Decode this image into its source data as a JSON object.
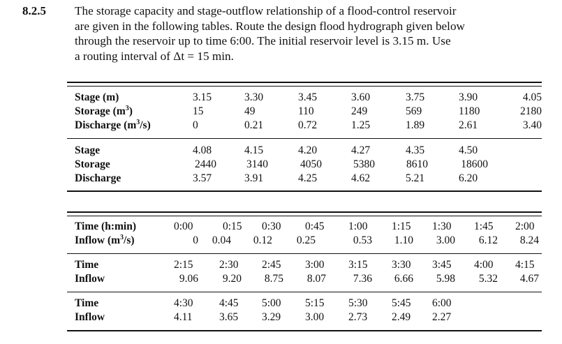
{
  "problem": {
    "number": "8.2.5",
    "lines": [
      "The storage capacity and stage-outflow relationship of a flood-control reservoir",
      "are given in the following tables. Route the design flood hydrograph given below",
      "through the reservoir up to time 6:00. The initial reservoir level is 3.15 m. Use",
      "a routing interval of Δt = 15 min."
    ]
  },
  "reservoir_table": {
    "block1": {
      "labels": [
        "Stage (m)",
        "Storage (m",
        "Discharge (m"
      ],
      "label_units": [
        "",
        ")",
        "/s)"
      ],
      "stage": [
        "3.15",
        "3.30",
        "3.45",
        "3.60",
        "3.75",
        "3.90",
        "4.05"
      ],
      "storage": [
        "15",
        "49",
        "110",
        "249",
        "569",
        "1180",
        "2180"
      ],
      "discharge": [
        "0",
        "0.21",
        "0.72",
        "1.25",
        "1.89",
        "2.61",
        "3.40"
      ]
    },
    "block2": {
      "labels": [
        "Stage",
        "Storage",
        "Discharge"
      ],
      "stage": [
        "4.08",
        "4.15",
        "4.20",
        "4.27",
        "4.35",
        "4.50"
      ],
      "storage": [
        "2440",
        "3140",
        "4050",
        "5380",
        "8610",
        "18600"
      ],
      "discharge": [
        "3.57",
        "3.91",
        "4.25",
        "4.62",
        "5.21",
        "6.20"
      ]
    }
  },
  "hydrograph_table": {
    "block1": {
      "labels": [
        "Time (h:min)",
        "Inflow (m",
        "/s)"
      ],
      "time": [
        "0:00",
        "0:15",
        "0:30",
        "0:45",
        "1:00",
        "1:15",
        "1:30",
        "1:45",
        "2:00"
      ],
      "inflow": [
        "0",
        "0.04",
        "0.12",
        "0.25",
        "0.53",
        "1.10",
        "3.00",
        "6.12",
        "8.24"
      ]
    },
    "block2": {
      "labels": [
        "Time",
        "Inflow"
      ],
      "time": [
        "2:15",
        "2:30",
        "2:45",
        "3:00",
        "3:15",
        "3:30",
        "3:45",
        "4:00",
        "4:15"
      ],
      "inflow": [
        "9.06",
        "9.20",
        "8.75",
        "8.07",
        "7.36",
        "6.66",
        "5.98",
        "5.32",
        "4.67"
      ]
    },
    "block3": {
      "labels": [
        "Time",
        "Inflow"
      ],
      "time": [
        "4:30",
        "4:45",
        "5:00",
        "5:15",
        "5:30",
        "5:45",
        "6:00"
      ],
      "inflow": [
        "4.11",
        "3.65",
        "3.29",
        "3.00",
        "2.73",
        "2.49",
        "2.27"
      ]
    }
  },
  "superscript": "3"
}
